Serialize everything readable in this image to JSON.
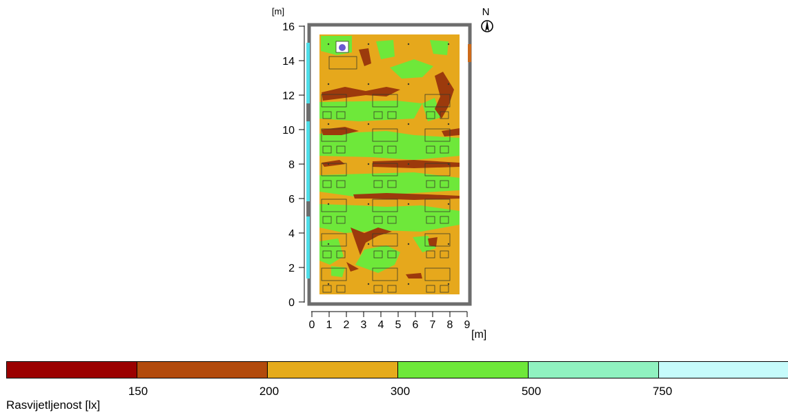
{
  "plan": {
    "y_unit": "[m]",
    "x_unit": "[m]",
    "north_label": "N",
    "y_ticks": [
      "16",
      "14",
      "12",
      "10",
      "8",
      "6",
      "4",
      "2",
      "0"
    ],
    "x_ticks": [
      "0",
      "1",
      "2",
      "3",
      "4",
      "5",
      "6",
      "7",
      "8",
      "9"
    ],
    "room_size_m": [
      9,
      16
    ]
  },
  "colors": {
    "wall": "#6d6d6d",
    "floor_base": "#e6a81c",
    "zone_green": "#6ee83a",
    "zone_dark": "#9c3a0c",
    "window": "#4fdde8",
    "door": "#cc6a1a",
    "furniture_line": "#3a3a2a"
  },
  "legend": {
    "title": "Rasvijetljenost [lx]",
    "swatches": [
      "#9b0000",
      "#b24a0c",
      "#e5ab1c",
      "#6ee83a",
      "#90f2c0",
      "#c6fbfb"
    ],
    "ticks": [
      "150",
      "200",
      "300",
      "500",
      "750"
    ]
  }
}
